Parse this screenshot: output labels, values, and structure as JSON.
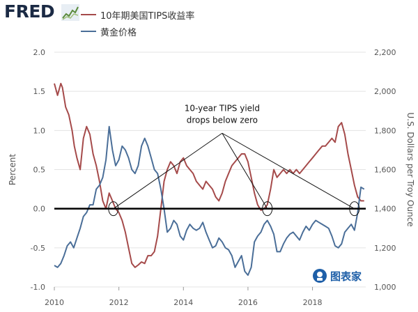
{
  "header": {
    "logo_text": "FRED",
    "legend": [
      {
        "label": "10年期美国TIPS收益率",
        "color": "#a54a4a"
      },
      {
        "label": "黄金价格",
        "color": "#4a6e98"
      }
    ]
  },
  "watermark": {
    "text": "图表家"
  },
  "chart_data": {
    "type": "line",
    "ylabel_left": "Percent",
    "ylabel_right": "U.S. Dollars per Troy Ounce",
    "xlim": [
      2010,
      2019.65
    ],
    "ylim_left": [
      -1.0,
      2.0
    ],
    "ylim_right": [
      1000,
      2200
    ],
    "x_ticks": [
      2010,
      2012,
      2014,
      2016,
      2018
    ],
    "y_ticks_left": [
      "-1.0",
      "-0.5",
      "0.0",
      "0.5",
      "1.0",
      "1.5",
      "2.0"
    ],
    "y_ticks_right": [
      "1,000",
      "1,200",
      "1,400",
      "1,600",
      "1,800",
      "2,000",
      "2,200"
    ],
    "grid": "horizontal",
    "annotation": {
      "lines": [
        "10-year TIPS yield",
        "drops below zero"
      ],
      "x": 2015.2,
      "y": 1.25,
      "circled_points": [
        [
          2011.83,
          0.0
        ],
        [
          2016.6,
          0.0
        ],
        [
          2019.3,
          0.0
        ]
      ]
    },
    "series": [
      {
        "name": "10年期美国TIPS收益率",
        "color": "#a54a4a",
        "axis": "left",
        "x": [
          2010.0,
          2010.1,
          2010.2,
          2010.25,
          2010.35,
          2010.45,
          2010.55,
          2010.62,
          2010.7,
          2010.8,
          2010.9,
          2011.0,
          2011.1,
          2011.2,
          2011.3,
          2011.4,
          2011.5,
          2011.6,
          2011.7,
          2011.8,
          2011.9,
          2012.0,
          2012.1,
          2012.2,
          2012.3,
          2012.4,
          2012.5,
          2012.6,
          2012.7,
          2012.8,
          2012.9,
          2013.0,
          2013.1,
          2013.2,
          2013.3,
          2013.4,
          2013.5,
          2013.6,
          2013.7,
          2013.8,
          2013.9,
          2014.0,
          2014.1,
          2014.2,
          2014.3,
          2014.4,
          2014.5,
          2014.6,
          2014.7,
          2014.8,
          2014.9,
          2015.0,
          2015.1,
          2015.2,
          2015.3,
          2015.4,
          2015.5,
          2015.6,
          2015.7,
          2015.8,
          2015.9,
          2016.0,
          2016.1,
          2016.2,
          2016.3,
          2016.4,
          2016.5,
          2016.6,
          2016.7,
          2016.8,
          2016.9,
          2017.0,
          2017.1,
          2017.2,
          2017.3,
          2017.4,
          2017.5,
          2017.6,
          2017.7,
          2017.8,
          2017.9,
          2018.0,
          2018.1,
          2018.2,
          2018.3,
          2018.4,
          2018.5,
          2018.6,
          2018.7,
          2018.8,
          2018.9,
          2019.0,
          2019.1,
          2019.2,
          2019.3,
          2019.4,
          2019.5,
          2019.6
        ],
        "values": [
          1.6,
          1.45,
          1.6,
          1.55,
          1.3,
          1.2,
          1.0,
          0.8,
          0.65,
          0.5,
          0.9,
          1.05,
          0.95,
          0.7,
          0.55,
          0.35,
          0.1,
          0.0,
          0.2,
          0.1,
          0.0,
          -0.05,
          -0.15,
          -0.3,
          -0.5,
          -0.7,
          -0.75,
          -0.72,
          -0.68,
          -0.7,
          -0.6,
          -0.6,
          -0.55,
          -0.35,
          0.0,
          0.35,
          0.5,
          0.6,
          0.55,
          0.45,
          0.6,
          0.65,
          0.55,
          0.5,
          0.45,
          0.35,
          0.3,
          0.25,
          0.35,
          0.3,
          0.25,
          0.15,
          0.1,
          0.2,
          0.35,
          0.45,
          0.55,
          0.6,
          0.65,
          0.7,
          0.7,
          0.6,
          0.4,
          0.2,
          0.05,
          -0.02,
          0.0,
          0.05,
          0.25,
          0.5,
          0.4,
          0.45,
          0.5,
          0.45,
          0.5,
          0.45,
          0.5,
          0.45,
          0.5,
          0.55,
          0.6,
          0.65,
          0.7,
          0.75,
          0.8,
          0.8,
          0.85,
          0.9,
          0.85,
          1.05,
          1.1,
          0.95,
          0.7,
          0.5,
          0.3,
          0.15,
          0.1,
          0.1
        ]
      },
      {
        "name": "黄金价格",
        "color": "#4a6e98",
        "axis": "right",
        "x": [
          2010.0,
          2010.1,
          2010.2,
          2010.3,
          2010.4,
          2010.5,
          2010.6,
          2010.7,
          2010.8,
          2010.9,
          2011.0,
          2011.1,
          2011.2,
          2011.3,
          2011.4,
          2011.5,
          2011.6,
          2011.7,
          2011.8,
          2011.9,
          2012.0,
          2012.1,
          2012.2,
          2012.3,
          2012.4,
          2012.5,
          2012.6,
          2012.7,
          2012.8,
          2012.9,
          2013.0,
          2013.1,
          2013.2,
          2013.3,
          2013.4,
          2013.5,
          2013.6,
          2013.7,
          2013.8,
          2013.9,
          2014.0,
          2014.1,
          2014.2,
          2014.3,
          2014.4,
          2014.5,
          2014.6,
          2014.7,
          2014.8,
          2014.9,
          2015.0,
          2015.1,
          2015.2,
          2015.3,
          2015.4,
          2015.5,
          2015.6,
          2015.7,
          2015.8,
          2015.9,
          2016.0,
          2016.1,
          2016.2,
          2016.3,
          2016.4,
          2016.5,
          2016.6,
          2016.7,
          2016.8,
          2016.9,
          2017.0,
          2017.1,
          2017.2,
          2017.3,
          2017.4,
          2017.5,
          2017.6,
          2017.7,
          2017.8,
          2017.9,
          2018.0,
          2018.1,
          2018.2,
          2018.3,
          2018.4,
          2018.5,
          2018.6,
          2018.7,
          2018.8,
          2018.9,
          2019.0,
          2019.1,
          2019.2,
          2019.3,
          2019.4,
          2019.5,
          2019.6
        ],
        "values": [
          1110,
          1100,
          1120,
          1160,
          1210,
          1230,
          1200,
          1250,
          1300,
          1360,
          1380,
          1420,
          1420,
          1500,
          1520,
          1560,
          1650,
          1820,
          1700,
          1620,
          1650,
          1720,
          1700,
          1660,
          1600,
          1580,
          1620,
          1720,
          1760,
          1720,
          1660,
          1600,
          1580,
          1500,
          1400,
          1280,
          1300,
          1340,
          1320,
          1260,
          1240,
          1290,
          1320,
          1300,
          1290,
          1300,
          1330,
          1280,
          1240,
          1200,
          1210,
          1250,
          1230,
          1200,
          1190,
          1160,
          1100,
          1130,
          1160,
          1080,
          1060,
          1100,
          1230,
          1260,
          1280,
          1320,
          1340,
          1310,
          1270,
          1180,
          1180,
          1220,
          1250,
          1270,
          1280,
          1260,
          1240,
          1280,
          1310,
          1290,
          1320,
          1340,
          1330,
          1320,
          1310,
          1300,
          1260,
          1210,
          1200,
          1220,
          1280,
          1300,
          1320,
          1290,
          1380,
          1510,
          1500
        ]
      }
    ]
  }
}
